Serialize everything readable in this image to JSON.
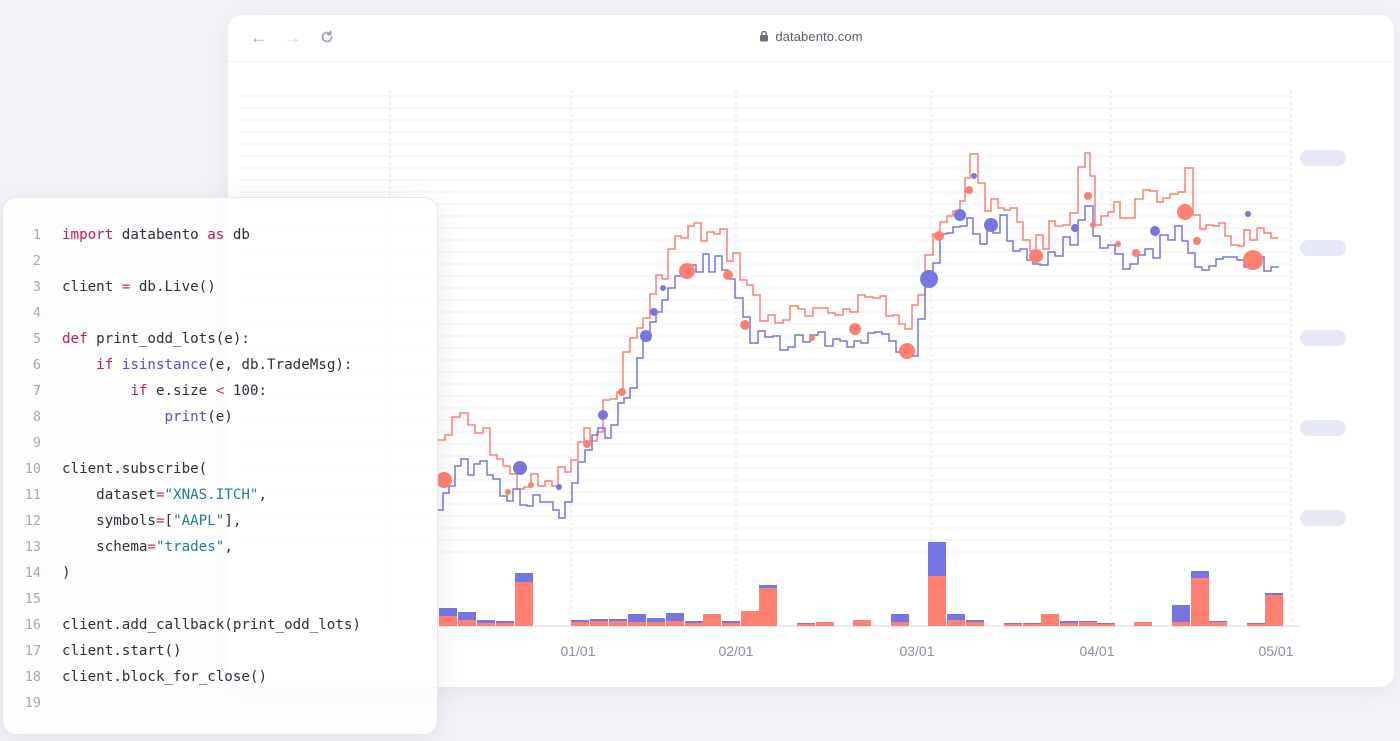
{
  "browser": {
    "url": "databento.com",
    "nav_icons": [
      "back-arrow-icon",
      "forward-arrow-icon",
      "reload-icon",
      "lock-icon"
    ]
  },
  "chart_data": {
    "type": "line",
    "x_ticks": [
      "01/01",
      "02/01",
      "03/01",
      "04/01",
      "05/01"
    ],
    "series_colors": {
      "bid": "#7676e2",
      "ask": "#ff7f70"
    },
    "bars_colors": {
      "top": "#7676e2",
      "bottom": "#ff7f70"
    },
    "grid": true,
    "y_tick_labels_hidden": 5
  },
  "code": {
    "lines": [
      {
        "n": "1",
        "parts": [
          [
            "kw",
            "import"
          ],
          [
            "t",
            " databento "
          ],
          [
            "kw",
            "as"
          ],
          [
            "t",
            " db"
          ]
        ]
      },
      {
        "n": "2",
        "parts": []
      },
      {
        "n": "3",
        "parts": [
          [
            "t",
            "client "
          ],
          [
            "op",
            "="
          ],
          [
            "t",
            " db.Live()"
          ]
        ]
      },
      {
        "n": "4",
        "parts": []
      },
      {
        "n": "5",
        "parts": [
          [
            "kw",
            "def"
          ],
          [
            "t",
            " print_odd_lots(e):"
          ]
        ]
      },
      {
        "n": "6",
        "parts": [
          [
            "t",
            "    "
          ],
          [
            "kw",
            "if"
          ],
          [
            "t",
            " "
          ],
          [
            "fn",
            "isinstance"
          ],
          [
            "t",
            "(e, db.TradeMsg):"
          ]
        ]
      },
      {
        "n": "7",
        "parts": [
          [
            "t",
            "        "
          ],
          [
            "kw",
            "if"
          ],
          [
            "t",
            " e.size "
          ],
          [
            "op",
            "<"
          ],
          [
            "t",
            " 100:"
          ]
        ]
      },
      {
        "n": "8",
        "parts": [
          [
            "t",
            "            "
          ],
          [
            "fn",
            "print"
          ],
          [
            "t",
            "(e)"
          ]
        ]
      },
      {
        "n": "9",
        "parts": []
      },
      {
        "n": "10",
        "parts": [
          [
            "t",
            "client.subscribe("
          ]
        ]
      },
      {
        "n": "11",
        "parts": [
          [
            "t",
            "    dataset"
          ],
          [
            "op",
            "="
          ],
          [
            "str",
            "\"XNAS.ITCH\""
          ],
          [
            "t",
            ","
          ]
        ]
      },
      {
        "n": "12",
        "parts": [
          [
            "t",
            "    symbols"
          ],
          [
            "op",
            "="
          ],
          [
            "t",
            "["
          ],
          [
            "str",
            "\"AAPL\""
          ],
          [
            "t",
            "],"
          ]
        ]
      },
      {
        "n": "13",
        "parts": [
          [
            "t",
            "    schema"
          ],
          [
            "op",
            "="
          ],
          [
            "str",
            "\"trades\""
          ],
          [
            "t",
            ","
          ]
        ]
      },
      {
        "n": "14",
        "parts": [
          [
            "t",
            ")"
          ]
        ]
      },
      {
        "n": "15",
        "parts": []
      },
      {
        "n": "16",
        "parts": [
          [
            "t",
            "client.add_callback(print_odd_lots)"
          ]
        ]
      },
      {
        "n": "17",
        "parts": [
          [
            "t",
            "client.start()"
          ]
        ]
      },
      {
        "n": "18",
        "parts": [
          [
            "t",
            "client.block_for_close()"
          ]
        ]
      },
      {
        "n": "19",
        "parts": []
      }
    ]
  }
}
